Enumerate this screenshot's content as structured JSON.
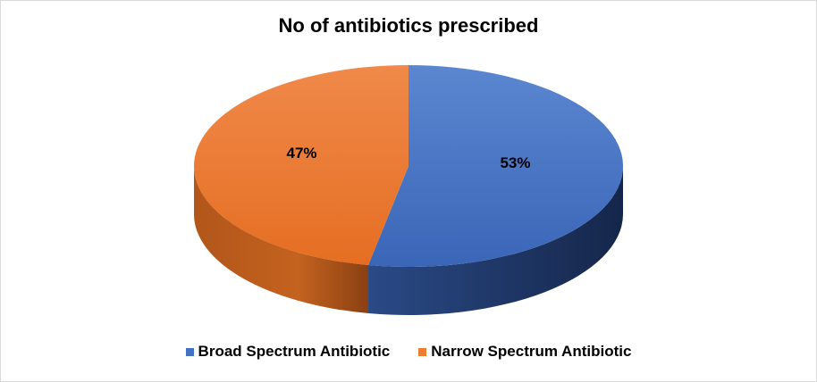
{
  "chart_data": {
    "type": "pie",
    "title": "No of antibiotics prescribed",
    "categories": [
      "Broad Spectrum Antibiotic",
      "Narrow Spectrum Antibiotic"
    ],
    "values": [
      53,
      47
    ],
    "data_labels": [
      "53%",
      "47%"
    ],
    "colors": [
      "#4472C4",
      "#ED7D31"
    ],
    "style": "3d",
    "legend_position": "bottom"
  }
}
